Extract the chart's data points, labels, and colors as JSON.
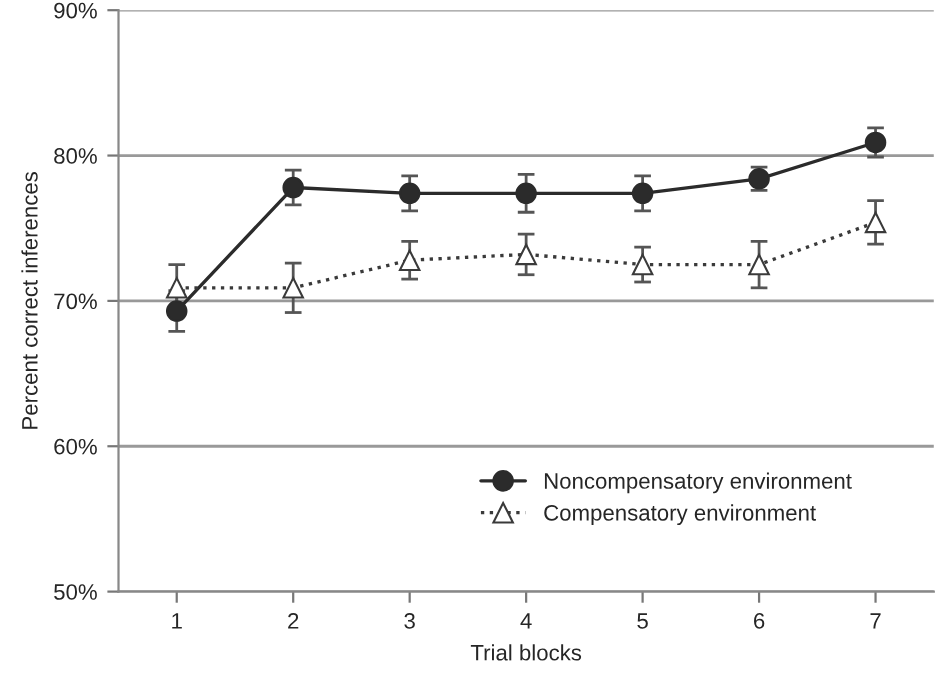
{
  "chart_data": {
    "type": "line",
    "xlabel": "Trial blocks",
    "ylabel": "Percent correct inferences",
    "x": [
      1,
      2,
      3,
      4,
      5,
      6,
      7
    ],
    "xlim": [
      0.5,
      7.5
    ],
    "xticks": [
      1,
      2,
      3,
      4,
      5,
      6,
      7
    ],
    "ylim": [
      50,
      90
    ],
    "yticks": [
      {
        "value": 50,
        "label": "50%"
      },
      {
        "value": 60,
        "label": "60%"
      },
      {
        "value": 70,
        "label": "70%"
      },
      {
        "value": 80,
        "label": "80%"
      },
      {
        "value": 90,
        "label": "90%"
      }
    ],
    "grid": "y",
    "legend": "bottom right",
    "series": [
      {
        "name": "Noncompensatory environment",
        "color": "#2b2b2b",
        "marker": "circle",
        "line_style": "solid",
        "values": [
          69.3,
          77.8,
          77.4,
          77.4,
          77.4,
          78.4,
          80.9
        ],
        "errors": [
          1.4,
          1.2,
          1.2,
          1.3,
          1.2,
          0.8,
          1.0
        ]
      },
      {
        "name": "Compensatory environment",
        "color": "#3a3a3a",
        "marker": "triangle",
        "line_style": "dotted",
        "values": [
          70.9,
          70.9,
          72.8,
          73.2,
          72.5,
          72.5,
          75.4
        ],
        "errors": [
          1.6,
          1.7,
          1.3,
          1.4,
          1.2,
          1.6,
          1.5
        ]
      }
    ]
  }
}
